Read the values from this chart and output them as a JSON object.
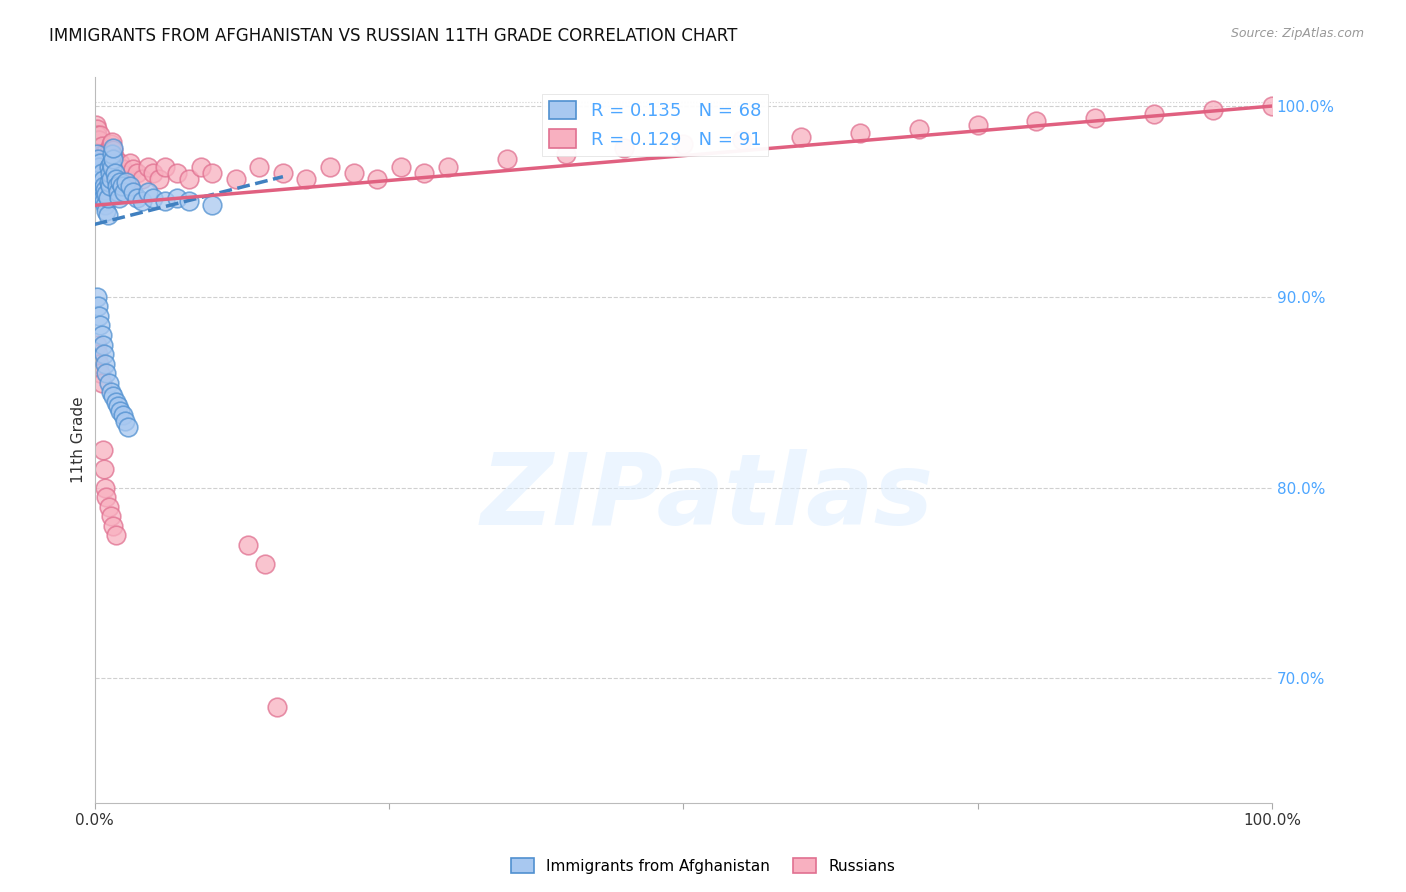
{
  "title": "IMMIGRANTS FROM AFGHANISTAN VS RUSSIAN 11TH GRADE CORRELATION CHART",
  "source": "Source: ZipAtlas.com",
  "ylabel": "11th Grade",
  "right_yticks": [
    "100.0%",
    "90.0%",
    "80.0%",
    "70.0%"
  ],
  "right_ytick_vals": [
    1.0,
    0.9,
    0.8,
    0.7
  ],
  "legend_blue_R": "0.135",
  "legend_blue_N": "68",
  "legend_pink_R": "0.129",
  "legend_pink_N": "91",
  "blue_fill": "#a8c8f0",
  "blue_edge": "#5090d0",
  "pink_fill": "#f8b0c0",
  "pink_edge": "#e07090",
  "blue_line_color": "#4080c0",
  "pink_line_color": "#e06080",
  "blue_scatter_x": [
    0.001,
    0.002,
    0.002,
    0.003,
    0.003,
    0.004,
    0.004,
    0.005,
    0.005,
    0.006,
    0.006,
    0.007,
    0.007,
    0.008,
    0.008,
    0.009,
    0.009,
    0.01,
    0.01,
    0.011,
    0.011,
    0.012,
    0.012,
    0.013,
    0.013,
    0.014,
    0.014,
    0.015,
    0.015,
    0.016,
    0.016,
    0.017,
    0.018,
    0.019,
    0.02,
    0.021,
    0.022,
    0.023,
    0.025,
    0.027,
    0.03,
    0.033,
    0.036,
    0.04,
    0.045,
    0.05,
    0.06,
    0.07,
    0.08,
    0.1,
    0.002,
    0.003,
    0.004,
    0.005,
    0.006,
    0.007,
    0.008,
    0.009,
    0.01,
    0.012,
    0.014,
    0.016,
    0.018,
    0.02,
    0.022,
    0.024,
    0.026,
    0.028
  ],
  "blue_scatter_y": [
    0.96,
    0.97,
    0.975,
    0.965,
    0.972,
    0.958,
    0.968,
    0.962,
    0.97,
    0.956,
    0.965,
    0.952,
    0.961,
    0.95,
    0.958,
    0.948,
    0.956,
    0.945,
    0.954,
    0.943,
    0.952,
    0.96,
    0.968,
    0.958,
    0.965,
    0.962,
    0.97,
    0.968,
    0.975,
    0.972,
    0.978,
    0.965,
    0.962,
    0.958,
    0.955,
    0.952,
    0.96,
    0.958,
    0.955,
    0.96,
    0.958,
    0.955,
    0.952,
    0.95,
    0.955,
    0.952,
    0.95,
    0.952,
    0.95,
    0.948,
    0.9,
    0.895,
    0.89,
    0.885,
    0.88,
    0.875,
    0.87,
    0.865,
    0.86,
    0.855,
    0.85,
    0.848,
    0.845,
    0.843,
    0.84,
    0.838,
    0.835,
    0.832
  ],
  "pink_scatter_x": [
    0.001,
    0.002,
    0.002,
    0.003,
    0.003,
    0.004,
    0.004,
    0.005,
    0.005,
    0.006,
    0.006,
    0.007,
    0.007,
    0.008,
    0.008,
    0.009,
    0.009,
    0.01,
    0.01,
    0.011,
    0.011,
    0.012,
    0.012,
    0.013,
    0.013,
    0.014,
    0.014,
    0.015,
    0.015,
    0.016,
    0.017,
    0.018,
    0.019,
    0.02,
    0.022,
    0.024,
    0.026,
    0.028,
    0.03,
    0.033,
    0.036,
    0.04,
    0.045,
    0.05,
    0.055,
    0.06,
    0.07,
    0.08,
    0.09,
    0.1,
    0.12,
    0.14,
    0.16,
    0.18,
    0.2,
    0.22,
    0.24,
    0.26,
    0.28,
    0.3,
    0.35,
    0.4,
    0.45,
    0.5,
    0.55,
    0.6,
    0.65,
    0.7,
    0.75,
    0.8,
    0.85,
    0.9,
    0.95,
    1.0,
    0.002,
    0.003,
    0.004,
    0.005,
    0.006,
    0.007,
    0.008,
    0.009,
    0.01,
    0.012,
    0.014,
    0.016,
    0.018,
    0.13,
    0.145,
    0.155
  ],
  "pink_scatter_y": [
    0.99,
    0.988,
    0.985,
    0.982,
    0.978,
    0.975,
    0.982,
    0.978,
    0.985,
    0.972,
    0.979,
    0.968,
    0.975,
    0.965,
    0.972,
    0.962,
    0.969,
    0.97,
    0.976,
    0.966,
    0.973,
    0.969,
    0.975,
    0.972,
    0.978,
    0.974,
    0.98,
    0.975,
    0.981,
    0.977,
    0.973,
    0.97,
    0.967,
    0.964,
    0.97,
    0.967,
    0.964,
    0.961,
    0.97,
    0.967,
    0.965,
    0.962,
    0.968,
    0.965,
    0.962,
    0.968,
    0.965,
    0.962,
    0.968,
    0.965,
    0.962,
    0.968,
    0.965,
    0.962,
    0.968,
    0.965,
    0.962,
    0.968,
    0.965,
    0.968,
    0.972,
    0.975,
    0.978,
    0.98,
    0.982,
    0.984,
    0.986,
    0.988,
    0.99,
    0.992,
    0.994,
    0.996,
    0.998,
    1.0,
    0.875,
    0.87,
    0.865,
    0.86,
    0.855,
    0.82,
    0.81,
    0.8,
    0.795,
    0.79,
    0.785,
    0.78,
    0.775,
    0.77,
    0.76,
    0.685
  ],
  "blue_trend_x": [
    0.0,
    0.16
  ],
  "blue_trend_y": [
    0.938,
    0.963
  ],
  "pink_trend_x": [
    0.0,
    1.0
  ],
  "pink_trend_y": [
    0.948,
    1.0
  ],
  "xlim": [
    0.0,
    1.0
  ],
  "ylim": [
    0.635,
    1.015
  ],
  "watermark_text": "ZIPatlas",
  "background_color": "#ffffff",
  "grid_color": "#d0d0d0",
  "figsize": [
    14.06,
    8.92
  ],
  "dpi": 100
}
